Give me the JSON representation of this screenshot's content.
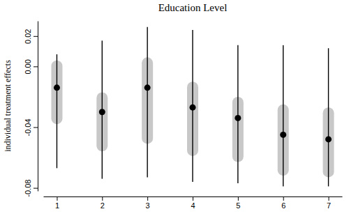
{
  "chart_data": {
    "type": "interval",
    "title": "Education Level",
    "y_label": "individual treatment effects",
    "x": [
      1,
      2,
      3,
      4,
      5,
      6,
      7
    ],
    "values": [
      -0.014,
      -0.03,
      -0.014,
      -0.027,
      -0.034,
      -0.045,
      -0.048
    ],
    "inner_lower": [
      -0.038,
      -0.056,
      -0.051,
      -0.059,
      -0.063,
      -0.072,
      -0.073
    ],
    "inner_upper": [
      0.004,
      -0.017,
      0.006,
      -0.01,
      -0.02,
      -0.025,
      -0.027
    ],
    "lower": [
      -0.067,
      -0.074,
      -0.073,
      -0.076,
      -0.077,
      -0.079,
      -0.079
    ],
    "upper": [
      0.008,
      0.017,
      0.026,
      0.024,
      0.014,
      0.014,
      0.012
    ],
    "color": "#000000",
    "xlim": [
      0.7,
      7.3
    ],
    "xticks": [
      1,
      2,
      3,
      4,
      5,
      6,
      7
    ],
    "ylim": [
      -0.082,
      0.03
    ],
    "yticks": [
      -0.08,
      -0.04,
      {
        "value": 0,
        "label": "0.00"
      },
      0.02
    ]
  }
}
